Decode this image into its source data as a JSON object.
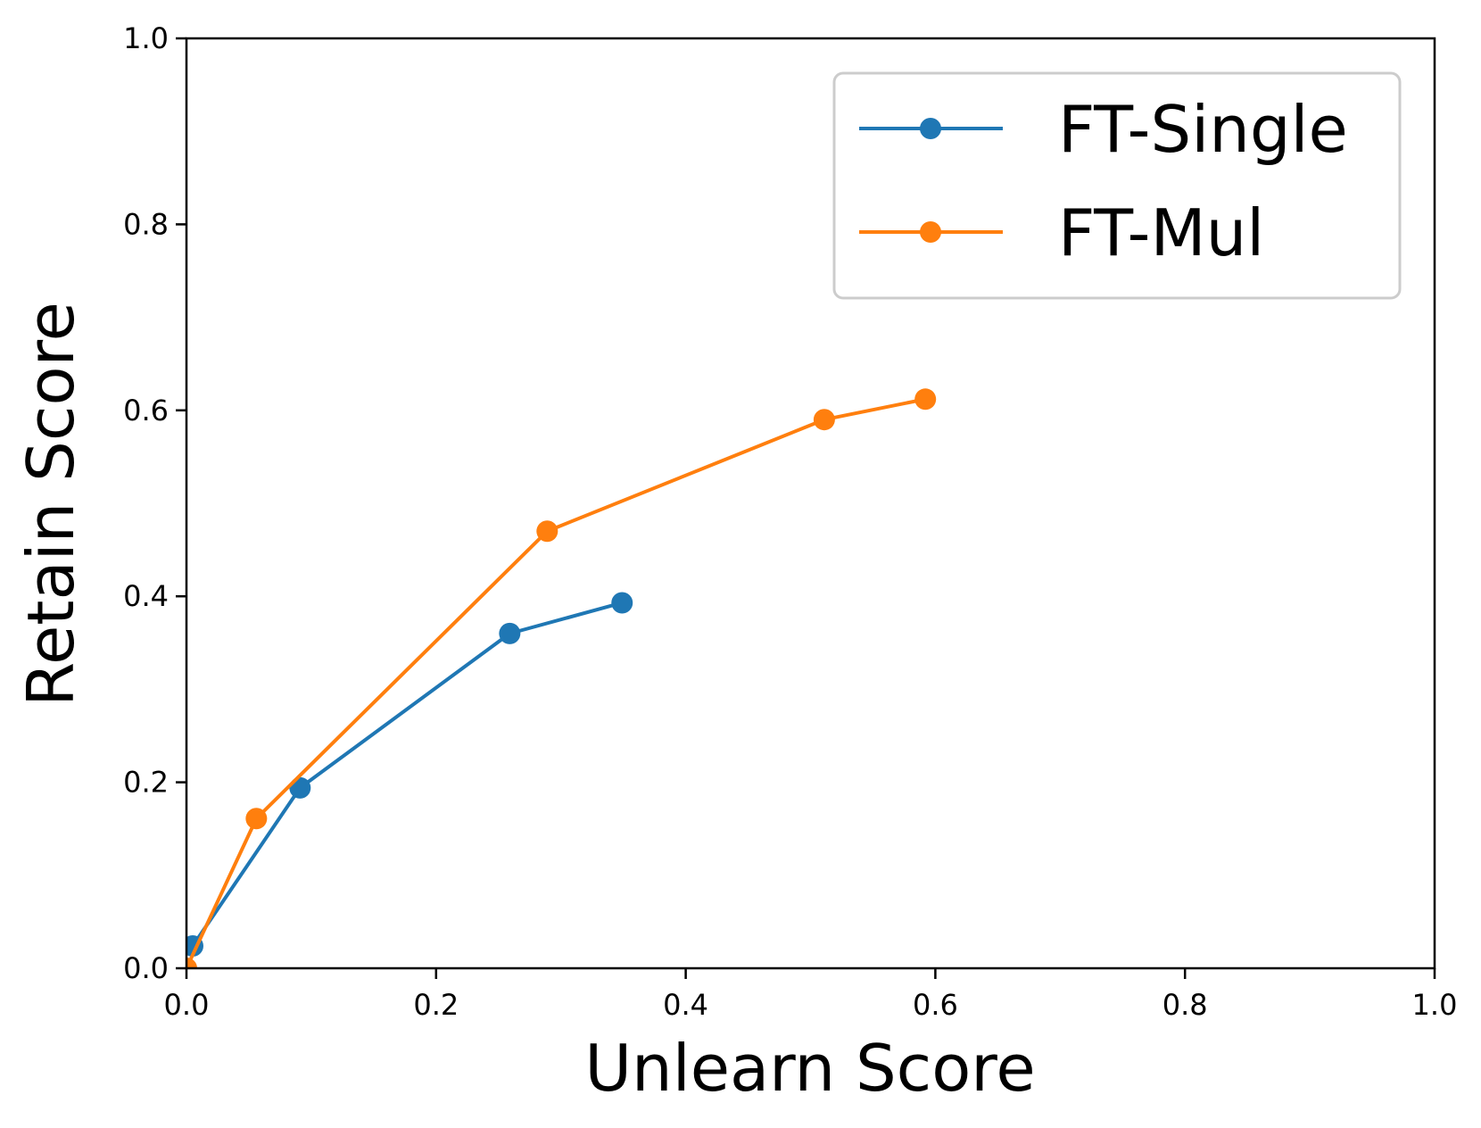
{
  "chart_data": {
    "type": "line",
    "xlabel": "Unlearn Score",
    "ylabel": "Retain Score",
    "xlim": [
      0.0,
      1.0
    ],
    "ylim": [
      0.0,
      1.0
    ],
    "xticks": [
      "0.0",
      "0.2",
      "0.4",
      "0.6",
      "0.8",
      "1.0"
    ],
    "yticks": [
      "0.0",
      "0.2",
      "0.4",
      "0.6",
      "0.8",
      "1.0"
    ],
    "grid": false,
    "legend_position": "top-right",
    "series": [
      {
        "name": "FT-Single",
        "color": "#1f77b4",
        "x": [
          0.005,
          0.091,
          0.259,
          0.349
        ],
        "y": [
          0.024,
          0.194,
          0.36,
          0.393
        ]
      },
      {
        "name": "FT-Mul",
        "color": "#ff7f0e",
        "x": [
          0.0,
          0.056,
          0.289,
          0.511,
          0.592
        ],
        "y": [
          0.0,
          0.161,
          0.47,
          0.59,
          0.612
        ]
      }
    ]
  }
}
